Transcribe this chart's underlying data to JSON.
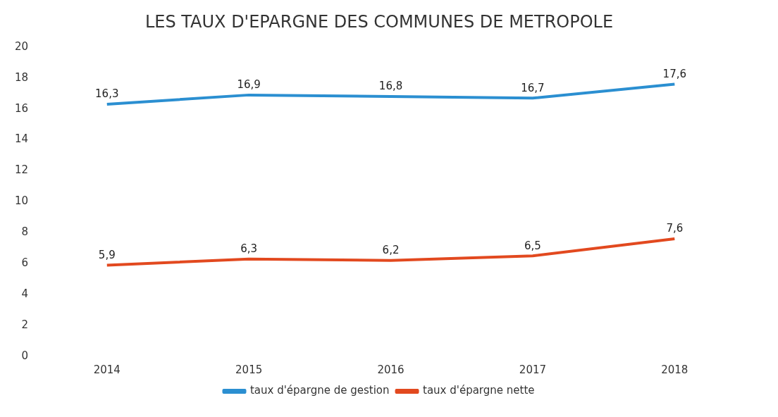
{
  "chart_data": {
    "type": "line",
    "title": "LES TAUX D'EPARGNE DES COMMUNES DE METROPOLE",
    "categories": [
      "2014",
      "2015",
      "2016",
      "2017",
      "2018"
    ],
    "series": [
      {
        "name": "taux d'épargne de gestion",
        "color": "#2b8fd1",
        "values": [
          16.3,
          16.9,
          16.8,
          16.7,
          17.6
        ],
        "value_labels": [
          "16,3",
          "16,9",
          "16,8",
          "16,7",
          "17,6"
        ]
      },
      {
        "name": "taux d'épargne nette",
        "color": "#e2491f",
        "values": [
          5.9,
          6.3,
          6.2,
          6.5,
          7.6
        ],
        "value_labels": [
          "5,9",
          "6,3",
          "6,2",
          "6,5",
          "7,6"
        ]
      }
    ],
    "ylim": [
      0,
      20
    ],
    "yticks": [
      0,
      2,
      4,
      6,
      8,
      10,
      12,
      14,
      16,
      18,
      20
    ],
    "grid": false,
    "legend": "bottom",
    "marker": "none",
    "line_style": "solid"
  }
}
